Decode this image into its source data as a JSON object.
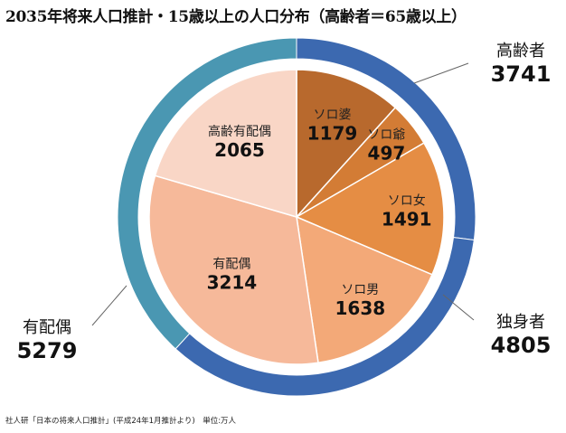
{
  "title": "2035年将来人口推計・15歳以上の人口分布（高齢者＝65歳以上）",
  "source": "社人研「日本の将来人口推計」(平成24年1月推計より)　単位:万人",
  "chart_data": {
    "type": "pie",
    "title": "2035年将来人口推計・15歳以上の人口分布（高齢者＝65歳以上）",
    "unit": "万人",
    "inner": [
      {
        "label": "ソロ婆",
        "value": 1179,
        "color": "#b8692d"
      },
      {
        "label": "ソロ爺",
        "value": 497,
        "color": "#d37c35"
      },
      {
        "label": "ソロ女",
        "value": 1491,
        "color": "#e58d44"
      },
      {
        "label": "ソロ男",
        "value": 1638,
        "color": "#f3a978"
      },
      {
        "label": "有配偶",
        "value": 3214,
        "color": "#f6b99a"
      },
      {
        "label": "高齢有配偶",
        "value": 2065,
        "color": "#f9d6c6"
      }
    ],
    "outer": [
      {
        "label": "高齢者",
        "value": 3741,
        "color": "#3c69b0"
      },
      {
        "label": "独身者",
        "value": 4805,
        "color": "#3c69b0"
      },
      {
        "label": "有配偶",
        "value": 5279,
        "color": "#4a97b2"
      }
    ]
  }
}
